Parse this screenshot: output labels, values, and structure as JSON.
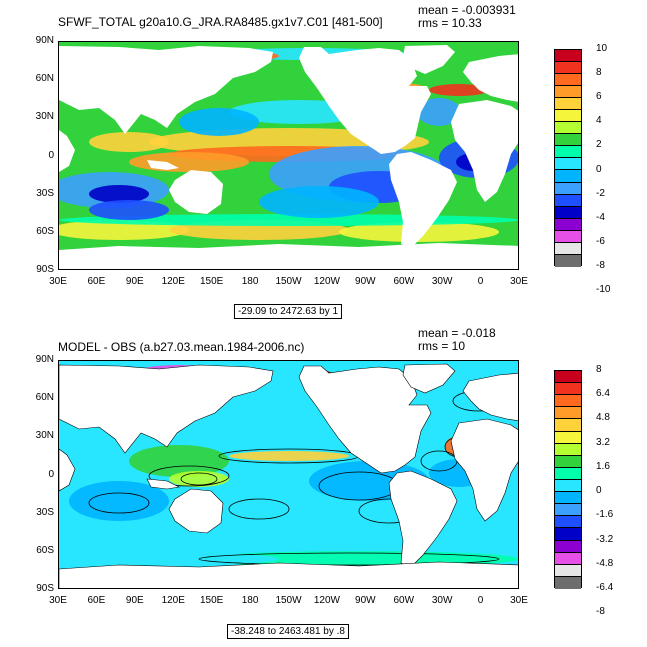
{
  "panels": [
    {
      "id": "top",
      "title": "SFWF_TOTAL g20a10.G_JRA.RA8485.gx1v7.C01 [481-500]",
      "mean": "mean = -0.003931",
      "rms": "rms = 10.33",
      "range_label": "-29.09 to 2472.63 by 1",
      "colorbar_labels": [
        "10",
        "8",
        "6",
        "4",
        "2",
        "0",
        "-2",
        "-4",
        "-6",
        "-8",
        "-10"
      ],
      "colorbar_colors": [
        "#c8001e",
        "#f0321e",
        "#ff6a1e",
        "#ff9b28",
        "#ffd23c",
        "#f5f53c",
        "#b4ff32",
        "#32d23c",
        "#00ffaa",
        "#28e6ff",
        "#00b4ff",
        "#3ca0ff",
        "#1e50ff",
        "#0000c8",
        "#8c00d2",
        "#e650e6",
        "#e6e6e6",
        "#6e6e6e"
      ],
      "contours": false
    },
    {
      "id": "bottom",
      "title": "MODEL - OBS (a.b27.03.mean.1984-2006.nc)",
      "mean": "mean = -0.018",
      "rms": "rms = 10",
      "range_label": "-38.248 to 2463.481 by .8",
      "colorbar_labels": [
        "8",
        "6.4",
        "4.8",
        "3.2",
        "1.6",
        "0",
        "-1.6",
        "-3.2",
        "-4.8",
        "-6.4",
        "-8"
      ],
      "colorbar_colors": [
        "#c8001e",
        "#f0321e",
        "#ff6a1e",
        "#ff9b28",
        "#ffd23c",
        "#f5f53c",
        "#b4ff32",
        "#32d23c",
        "#00ffaa",
        "#28e6ff",
        "#00b4ff",
        "#3ca0ff",
        "#1e50ff",
        "#0000c8",
        "#8c00d2",
        "#e650e6",
        "#e6e6e6",
        "#6e6e6e"
      ],
      "contours": true
    }
  ],
  "lat_labels": [
    "90N",
    "60N",
    "30N",
    "0",
    "30S",
    "60S",
    "90S"
  ],
  "lon_labels": [
    "30E",
    "60E",
    "90E",
    "120E",
    "150E",
    "180",
    "150W",
    "120W",
    "90W",
    "60W",
    "30W",
    "0",
    "30E"
  ],
  "colors": {
    "ocean_background": "#32d23c",
    "land": "#ffffff",
    "contour": "#000000"
  }
}
